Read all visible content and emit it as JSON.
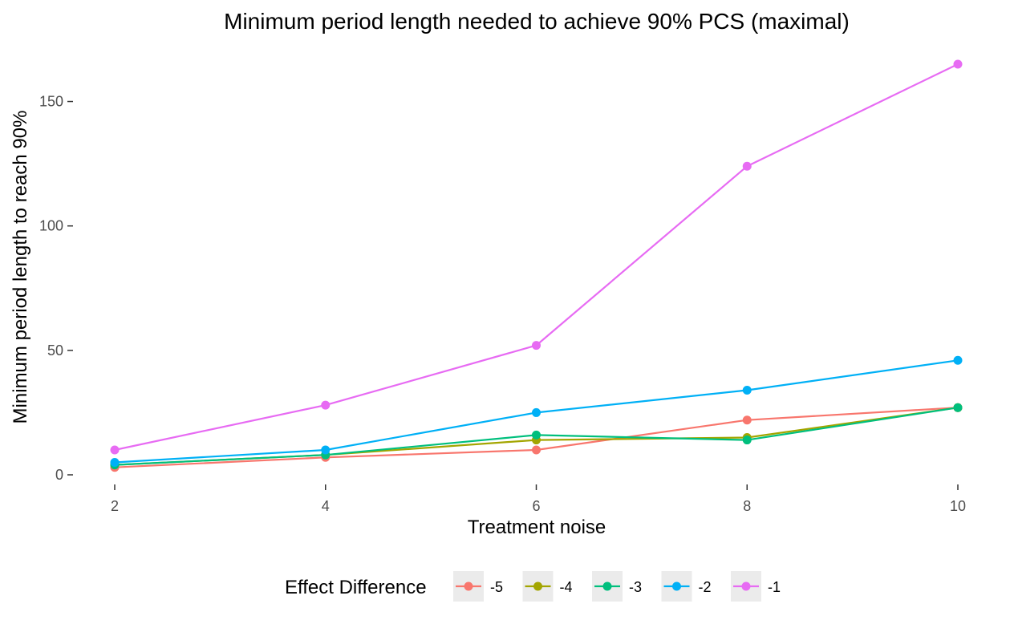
{
  "chart_data": {
    "type": "line",
    "title": "Minimum period length needed to achieve 90% PCS (maximal)",
    "xlabel": "Treatment noise",
    "ylabel": "Minimum period length to reach 90%",
    "x": [
      2,
      4,
      6,
      8,
      10
    ],
    "xlim": [
      2,
      10
    ],
    "ylim": [
      0,
      165
    ],
    "xticks": [
      2,
      4,
      6,
      8,
      10
    ],
    "yticks": [
      0,
      50,
      100,
      150
    ],
    "grid": false,
    "legend": {
      "title": "Effect Difference",
      "position": "bottom"
    },
    "series": [
      {
        "name": "-5",
        "color": "#F8766D",
        "values": [
          3,
          7,
          10,
          22,
          27
        ]
      },
      {
        "name": "-4",
        "color": "#A3A500",
        "values": [
          4,
          8,
          14,
          15,
          27
        ]
      },
      {
        "name": "-3",
        "color": "#00BF7D",
        "values": [
          4,
          8,
          16,
          14,
          27
        ]
      },
      {
        "name": "-2",
        "color": "#00B0F6",
        "values": [
          5,
          10,
          25,
          34,
          46
        ]
      },
      {
        "name": "-1",
        "color": "#E76BF3",
        "values": [
          10,
          28,
          52,
          124,
          165
        ]
      }
    ]
  }
}
